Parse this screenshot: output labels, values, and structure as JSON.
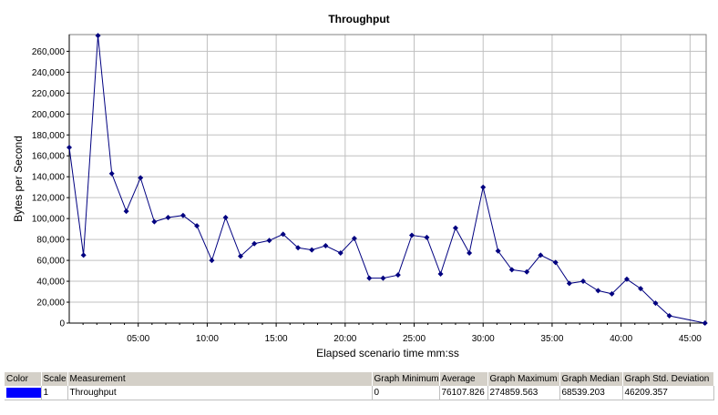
{
  "chart_data": {
    "type": "line",
    "title": "Throughput",
    "xlabel": "Elapsed scenario time mm:ss",
    "ylabel": "Bytes per Second",
    "x_ticks": [
      "05:00",
      "10:00",
      "15:00",
      "20:00",
      "25:00",
      "30:00",
      "35:00",
      "40:00",
      "45:00"
    ],
    "x_tick_seconds": [
      300,
      600,
      900,
      1200,
      1500,
      1800,
      2100,
      2400,
      2700
    ],
    "y_ticks": [
      "0",
      "20,000",
      "40,000",
      "60,000",
      "80,000",
      "100,000",
      "120,000",
      "140,000",
      "160,000",
      "180,000",
      "200,000",
      "220,000",
      "240,000",
      "260,000"
    ],
    "y_tick_values": [
      0,
      20000,
      40000,
      60000,
      80000,
      100000,
      120000,
      140000,
      160000,
      180000,
      200000,
      220000,
      240000,
      260000
    ],
    "xlim": [
      "00:00",
      "46:10"
    ],
    "xlim_seconds": [
      0,
      2770
    ],
    "ylim": [
      0,
      276000
    ],
    "grid": true,
    "series": [
      {
        "name": "Throughput",
        "color": "#000080",
        "marker": "diamond",
        "points": [
          [
            "00:00",
            168000
          ],
          [
            "01:02",
            65000
          ],
          [
            "02:05",
            275000
          ],
          [
            "03:05",
            143000
          ],
          [
            "04:08",
            107000
          ],
          [
            "05:10",
            139000
          ],
          [
            "06:10",
            97000
          ],
          [
            "07:10",
            101000
          ],
          [
            "08:15",
            103000
          ],
          [
            "09:15",
            93000
          ],
          [
            "10:20",
            60000
          ],
          [
            "11:20",
            101000
          ],
          [
            "12:25",
            64000
          ],
          [
            "13:25",
            76000
          ],
          [
            "14:30",
            79000
          ],
          [
            "15:30",
            85000
          ],
          [
            "16:35",
            72000
          ],
          [
            "17:35",
            70000
          ],
          [
            "18:35",
            74000
          ],
          [
            "19:40",
            67000
          ],
          [
            "20:40",
            81000
          ],
          [
            "21:45",
            43000
          ],
          [
            "22:45",
            43000
          ],
          [
            "23:50",
            46000
          ],
          [
            "24:50",
            84000
          ],
          [
            "25:55",
            82000
          ],
          [
            "26:55",
            47000
          ],
          [
            "28:00",
            91000
          ],
          [
            "29:00",
            67000
          ],
          [
            "30:00",
            130000
          ],
          [
            "31:05",
            69000
          ],
          [
            "32:05",
            51000
          ],
          [
            "33:10",
            49000
          ],
          [
            "34:10",
            65000
          ],
          [
            "35:15",
            58000
          ],
          [
            "36:15",
            38000
          ],
          [
            "37:15",
            40000
          ],
          [
            "38:20",
            31000
          ],
          [
            "39:20",
            28000
          ],
          [
            "40:25",
            42000
          ],
          [
            "41:25",
            33000
          ],
          [
            "42:30",
            19000
          ],
          [
            "43:30",
            7000
          ],
          [
            "46:05",
            0
          ]
        ]
      }
    ]
  },
  "legend": {
    "headers": {
      "color": "Color",
      "scale": "Scale",
      "measurement": "Measurement",
      "graph_minimum": "Graph Minimum",
      "average": "Average",
      "graph_maximum": "Graph Maximum",
      "graph_median": "Graph Median",
      "graph_std_deviation": "Graph Std. Deviation"
    },
    "row": {
      "color": "#0000ff",
      "scale": "1",
      "measurement": "Throughput",
      "graph_minimum": "0",
      "average": "76107.826",
      "graph_maximum": "274859.563",
      "graph_median": "68539.203",
      "graph_std_deviation": "46209.357"
    }
  }
}
